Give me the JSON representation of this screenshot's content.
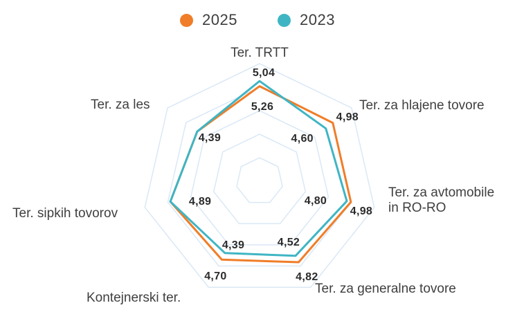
{
  "legend": {
    "items": [
      {
        "label": "2025",
        "color": "#F07D28"
      },
      {
        "label": "2023",
        "color": "#3FB5C4"
      }
    ]
  },
  "chart_data": {
    "type": "radar",
    "title": "",
    "categories": [
      "Ter. TRTT",
      "Ter. za hlajene tovore",
      "Ter. za avtomobile in RO-RO",
      "Ter. za generalne tovore",
      "Kontejnerski ter.",
      "Ter. sipkih tovorov",
      "Ter. za les"
    ],
    "axis_display": [
      [
        "Ter. TRTT"
      ],
      [
        "Ter. za hlajene tovore"
      ],
      [
        "Ter. za avtomobile",
        "in RO-RO"
      ],
      [
        "Ter. za generalne tovore"
      ],
      [
        "Kontejnerski ter."
      ],
      [
        "Ter. sipkih tovorov"
      ],
      [
        "Ter. za les"
      ]
    ],
    "series": [
      {
        "name": "2025",
        "color": "#F07D28",
        "values": [
          5.04,
          4.98,
          4.98,
          4.82,
          4.7,
          4.89,
          4.39
        ],
        "value_labels": [
          "5,04",
          "4,98",
          "4,98",
          "4,82",
          "4,70",
          null,
          null
        ]
      },
      {
        "name": "2023",
        "color": "#3FB5C4",
        "values": [
          5.26,
          4.6,
          4.8,
          4.52,
          4.39,
          4.89,
          4.39
        ],
        "value_labels": [
          "5,26",
          "4,60",
          "4,80",
          "4,52",
          "4,39",
          "4,89",
          "4,39"
        ]
      }
    ],
    "scale": {
      "min": 1,
      "max": 6,
      "ring_step": 1,
      "rings": 5
    },
    "grid": {
      "shape": "polygon",
      "sides": 7,
      "color": "#D9E8F6",
      "spokes": false
    },
    "legend_position": "top",
    "value_label_color": "#2b2b2b",
    "axis_label_color": "#3f3f3f"
  }
}
